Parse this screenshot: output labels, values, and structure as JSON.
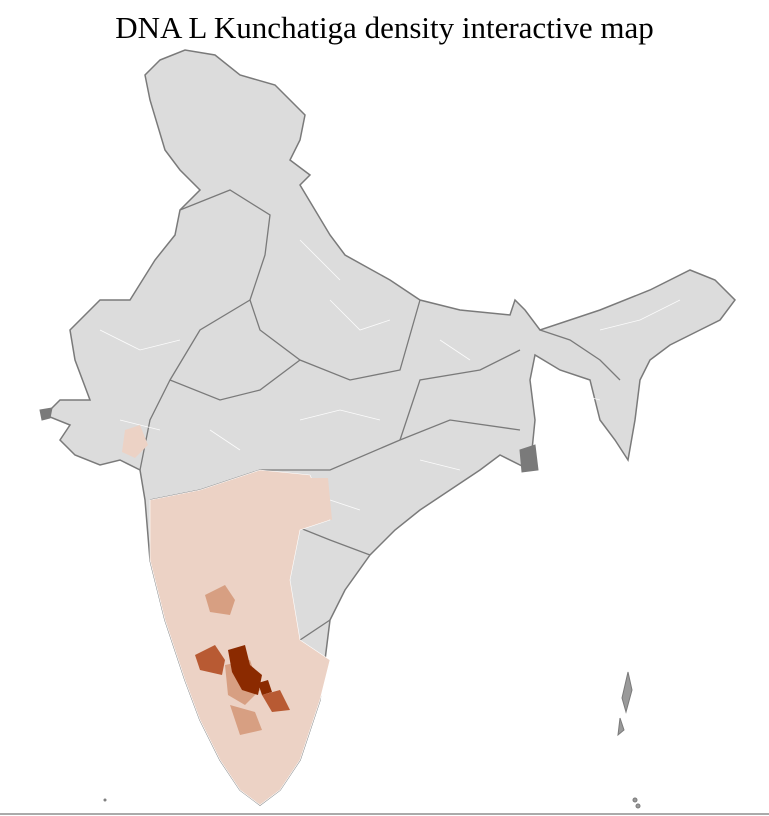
{
  "title": "DNA L Kunchatiga density interactive map",
  "map": {
    "region": "India",
    "colors": {
      "land": "#dcdcdc",
      "state_border": "#7a7a7a",
      "district_border": "#ffffff",
      "density_low": "#ecd2c5",
      "density_mid": "#d79f82",
      "density_high": "#b85a33",
      "density_max": "#8b2a00"
    }
  }
}
